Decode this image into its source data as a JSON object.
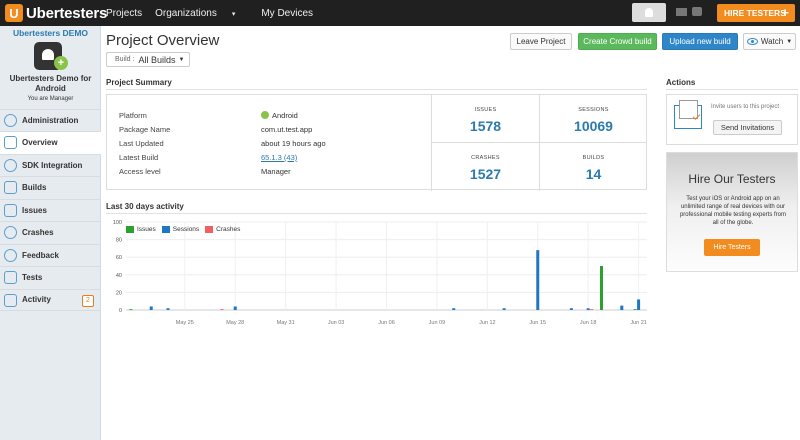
{
  "topbar": {
    "logo_text": "Ubertesters",
    "nav": [
      {
        "label": "Projects"
      },
      {
        "label": "Organizations",
        "caret": "▾"
      },
      {
        "label": "My Devices"
      }
    ],
    "hire_button": "HIRE TESTERS",
    "hire_plus": "+"
  },
  "sidebar": {
    "org_name": "Ubertesters DEMO",
    "app_badge": "+",
    "app_name": "Ubertesters Demo for Android",
    "role": "You are Manager",
    "items": [
      {
        "label": "Administration",
        "icon": "gear-icon"
      },
      {
        "label": "Overview",
        "icon": "overview-icon"
      },
      {
        "label": "SDK Integration",
        "icon": "sdk-icon"
      },
      {
        "label": "Builds",
        "icon": "builds-icon"
      },
      {
        "label": "Issues",
        "icon": "warning-icon"
      },
      {
        "label": "Crashes",
        "icon": "crash-icon"
      },
      {
        "label": "Feedback",
        "icon": "feedback-icon"
      },
      {
        "label": "Tests",
        "icon": "tests-icon"
      },
      {
        "label": "Activity",
        "icon": "activity-icon",
        "count": "2"
      }
    ]
  },
  "header": {
    "title": "Project Overview",
    "build_prefix": "Build :",
    "build_value": "All Builds",
    "buttons": {
      "leave": "Leave Project",
      "crowd": "Create Crowd build",
      "upload": "Upload new build",
      "watch": "Watch"
    }
  },
  "summary": {
    "title": "Project Summary",
    "rows": [
      {
        "key": "Platform",
        "value": "Android"
      },
      {
        "key": "Package Name",
        "value": "com.ut.test.app"
      },
      {
        "key": "Last Updated",
        "value": "about 19 hours ago"
      },
      {
        "key": "Latest Build",
        "value": "65.1.3 (43)"
      },
      {
        "key": "Access level",
        "value": "Manager"
      }
    ],
    "stats": [
      {
        "label": "ISSUES",
        "value": "1578"
      },
      {
        "label": "SESSIONS",
        "value": "10069"
      },
      {
        "label": "CRASHES",
        "value": "1527"
      },
      {
        "label": "BUILDS",
        "value": "14"
      }
    ]
  },
  "activity": {
    "title": "Last 30 days activity"
  },
  "actions": {
    "title": "Actions",
    "invite_text": "Invite users to this project",
    "invite_button": "Send Invitations",
    "hire_title": "Hire Our Testers",
    "hire_text": "Test your iOS or Android app on an unlimited range of real devices with our professional mobile testing experts from all of the globe.",
    "hire_button": "Hire Testers"
  },
  "colors": {
    "issues": "#2ca02c",
    "sessions": "#1f77c4",
    "crashes": "#f06060",
    "accent": "#f28c1e",
    "link": "#2a7ab0"
  },
  "chart_data": {
    "type": "bar",
    "title": "",
    "ylim": [
      0,
      100
    ],
    "yticks": [
      0,
      20,
      40,
      60,
      80,
      100
    ],
    "grid": true,
    "legend_position": "top-left",
    "x_tick_labels": [
      "May 25",
      "May 28",
      "May 31",
      "Jun 03",
      "Jun 06",
      "Jun 09",
      "Jun 12",
      "Jun 15",
      "Jun 18",
      "Jun 21"
    ],
    "x_tick_days": [
      3,
      6,
      9,
      12,
      15,
      18,
      21,
      24,
      27,
      30
    ],
    "series": [
      {
        "name": "Issues",
        "color": "#2ca02c",
        "points": [
          [
            0,
            1
          ],
          [
            28,
            50
          ],
          [
            30,
            1
          ]
        ]
      },
      {
        "name": "Sessions",
        "color": "#1f77c4",
        "points": [
          [
            1,
            4
          ],
          [
            2,
            2
          ],
          [
            6,
            4
          ],
          [
            19,
            2
          ],
          [
            22,
            2
          ],
          [
            24,
            68
          ],
          [
            26,
            2
          ],
          [
            27,
            2
          ],
          [
            29,
            5
          ],
          [
            30,
            12
          ]
        ]
      },
      {
        "name": "Crashes",
        "color": "#f06060",
        "points": [
          [
            5,
            1
          ],
          [
            27,
            1
          ]
        ]
      }
    ]
  }
}
